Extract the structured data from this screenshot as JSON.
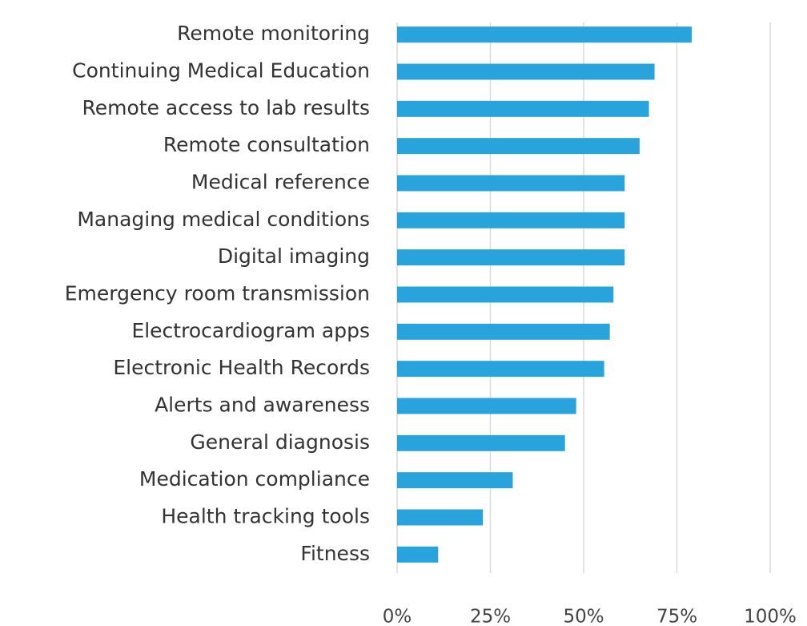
{
  "chart_data": {
    "type": "hbar",
    "categories": [
      "Remote monitoring",
      "Continuing Medical Education",
      "Remote access to lab results",
      "Remote consultation",
      "Medical reference",
      "Managing medical conditions",
      "Digital imaging",
      "Emergency room transmission",
      "Electrocardiogram apps",
      "Electronic Health Records",
      "Alerts and awareness",
      "General diagnosis",
      "Medication compliance",
      "Health tracking tools",
      "Fitness"
    ],
    "values": [
      79,
      69,
      67.5,
      65,
      61,
      61,
      61,
      58,
      57,
      55.5,
      48,
      45,
      31,
      23,
      11
    ],
    "color": "#29a3db",
    "xlim": [
      0,
      100
    ],
    "xticks": [
      {
        "value": 0,
        "label": "0%"
      },
      {
        "value": 25,
        "label": "25%"
      },
      {
        "value": 50,
        "label": "50%"
      },
      {
        "value": 75,
        "label": "75%"
      },
      {
        "value": 100,
        "label": "100%"
      }
    ],
    "grid": true
  }
}
